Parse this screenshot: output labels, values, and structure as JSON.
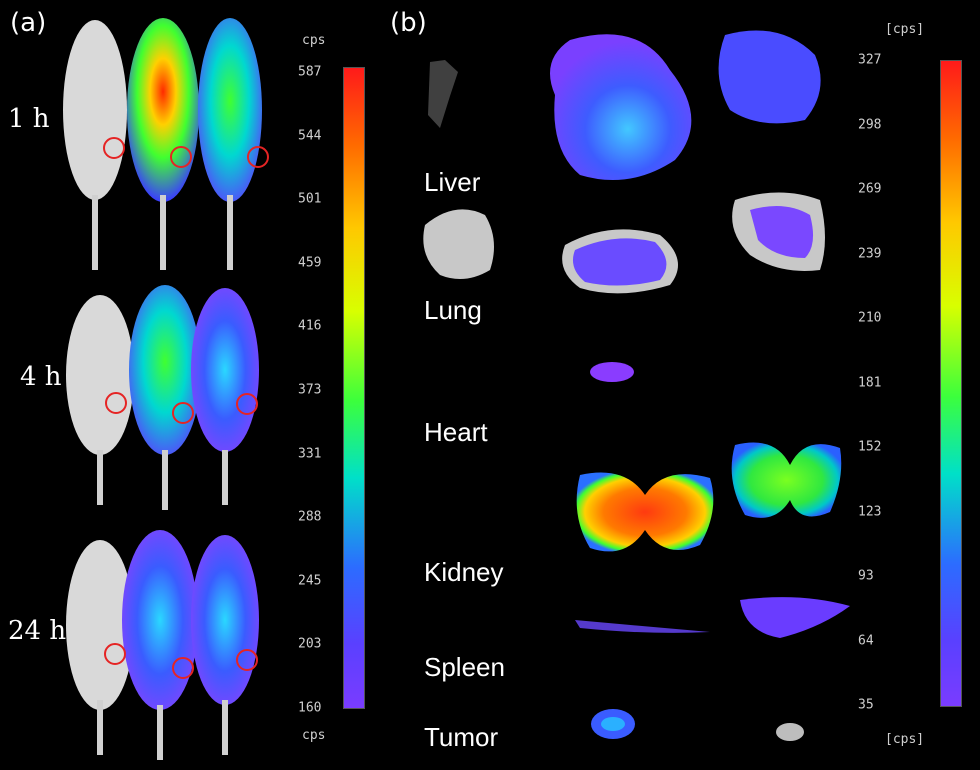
{
  "panel_a": {
    "label": "(a)",
    "time_points": [
      "1 h",
      "4 h",
      "24 h"
    ],
    "colorbar": {
      "unit_top": "cps",
      "unit_bottom": "cps",
      "ticks": [
        "587",
        "544",
        "501",
        "459",
        "416",
        "373",
        "331",
        "288",
        "245",
        "203",
        "160"
      ]
    }
  },
  "panel_b": {
    "label": "(b)",
    "organs": [
      "Liver",
      "Lung",
      "Heart",
      "Kidney",
      "Spleen",
      "Tumor"
    ],
    "colorbar": {
      "unit_top": "[cps]",
      "unit_bottom": "[cps]",
      "ticks": [
        "327",
        "298",
        "269",
        "239",
        "210",
        "181",
        "152",
        "123",
        "93",
        "64",
        "35"
      ]
    }
  },
  "colors": {
    "tumor_circle": "#e52424",
    "mouse_body": "#d9d9d9"
  }
}
